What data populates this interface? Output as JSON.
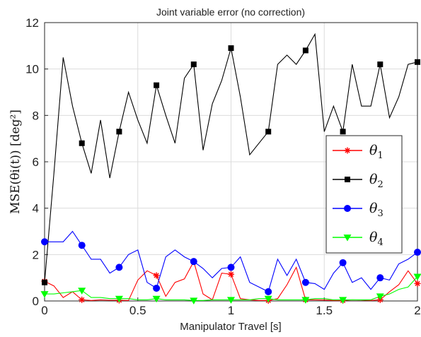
{
  "chart_data": {
    "type": "line",
    "title": "Joint variable error (no correction)",
    "xlabel": "Manipulator Travel [s]",
    "ylabel": "MSE(θi(t)) [deg²]",
    "xlim": [
      0,
      2
    ],
    "ylim": [
      0,
      12
    ],
    "xticks": [
      0,
      0.5,
      1,
      1.5,
      2
    ],
    "xtick_labels": [
      "0",
      "0.5",
      "1",
      "1.5",
      "2"
    ],
    "yticks": [
      0,
      2,
      4,
      6,
      8,
      10,
      12
    ],
    "ytick_labels": [
      "0",
      "2",
      "4",
      "6",
      "8",
      "10",
      "12"
    ],
    "grid": true,
    "legend": "right",
    "x": [
      0,
      0.05,
      0.1,
      0.15,
      0.2,
      0.25,
      0.3,
      0.35,
      0.4,
      0.45,
      0.5,
      0.55,
      0.6,
      0.65,
      0.7,
      0.75,
      0.8,
      0.85,
      0.9,
      0.95,
      1.0,
      1.05,
      1.1,
      1.15,
      1.2,
      1.25,
      1.3,
      1.35,
      1.4,
      1.45,
      1.5,
      1.55,
      1.6,
      1.65,
      1.7,
      1.75,
      1.8,
      1.85,
      1.9,
      1.95,
      2.0
    ],
    "series": [
      {
        "name": "θ1",
        "sub": "1",
        "color": "#ff0000",
        "marker": "star",
        "values": [
          0.85,
          0.65,
          0.15,
          0.4,
          0.05,
          0.02,
          0.05,
          0.03,
          0.03,
          0.02,
          0.9,
          1.3,
          1.1,
          0.2,
          0.8,
          0.95,
          1.7,
          0.3,
          0.05,
          1.2,
          1.15,
          0.1,
          0.05,
          0.02,
          0.02,
          0.1,
          0.7,
          1.45,
          0.05,
          0.05,
          0.04,
          0.02,
          0.02,
          0.05,
          0.04,
          0.02,
          0.05,
          0.4,
          0.7,
          1.3,
          0.75
        ]
      },
      {
        "name": "θ2",
        "sub": "2",
        "color": "#000000",
        "marker": "square",
        "values": [
          0.8,
          5.5,
          10.5,
          8.4,
          6.8,
          5.5,
          7.8,
          5.3,
          7.3,
          9.0,
          7.8,
          6.8,
          9.3,
          8.0,
          6.8,
          9.6,
          10.2,
          6.5,
          8.5,
          9.5,
          10.9,
          8.8,
          6.3,
          6.8,
          7.3,
          10.2,
          10.6,
          10.2,
          10.8,
          11.5,
          7.3,
          8.4,
          7.3,
          10.2,
          8.4,
          8.4,
          10.2,
          7.9,
          8.8,
          10.2,
          10.3
        ]
      },
      {
        "name": "θ3",
        "sub": "3",
        "color": "#0000ff",
        "marker": "circle",
        "values": [
          2.55,
          2.55,
          2.55,
          3.0,
          2.4,
          1.8,
          1.8,
          1.2,
          1.45,
          2.0,
          2.2,
          0.8,
          0.55,
          1.9,
          2.2,
          1.9,
          1.7,
          1.4,
          1.0,
          1.4,
          1.45,
          1.9,
          0.8,
          0.6,
          0.4,
          1.8,
          1.1,
          1.8,
          0.8,
          0.75,
          0.5,
          1.2,
          1.65,
          0.8,
          1.0,
          0.5,
          1.0,
          0.9,
          1.6,
          1.8,
          2.1
        ]
      },
      {
        "name": "θ4",
        "sub": "4",
        "color": "#00ff00",
        "marker": "triangle-down",
        "values": [
          0.3,
          0.3,
          0.35,
          0.4,
          0.45,
          0.15,
          0.15,
          0.1,
          0.1,
          0.1,
          0.05,
          0.05,
          0.1,
          0.05,
          0.05,
          0.05,
          0.02,
          0.02,
          0.05,
          0.05,
          0.05,
          0.05,
          0.05,
          0.1,
          0.1,
          0.05,
          0.05,
          0.05,
          0.05,
          0.1,
          0.1,
          0.05,
          0.05,
          0.05,
          0.05,
          0.05,
          0.2,
          0.3,
          0.5,
          0.6,
          1.05
        ]
      }
    ],
    "marker_every": 4
  }
}
